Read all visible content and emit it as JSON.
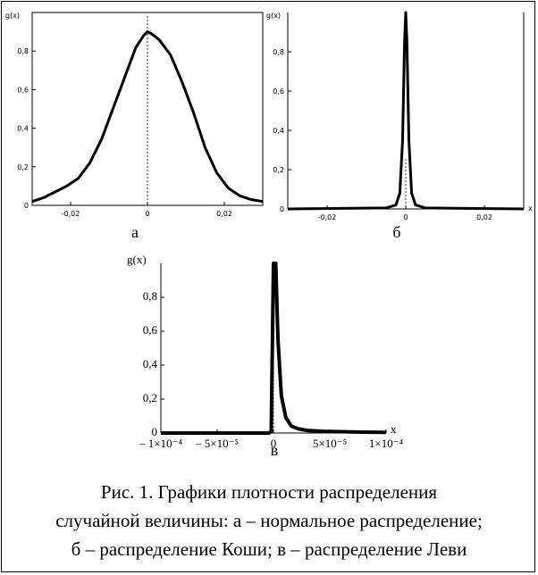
{
  "chart_data": [
    {
      "type": "line",
      "panel_label": "а",
      "ylabel": "g(x)",
      "xlabel": "",
      "xlim": [
        -0.03,
        0.03
      ],
      "ylim": [
        0,
        1
      ],
      "xticks": [
        -0.02,
        0,
        0.02
      ],
      "xtick_labels": [
        "-0,02",
        "0",
        "0,02"
      ],
      "yticks": [
        0.2,
        0.4,
        0.6,
        0.8
      ],
      "ytick_labels": [
        "0,2",
        "0,4",
        "0,6",
        "0,8"
      ],
      "series": [
        {
          "x": [
            -0.03,
            -0.027,
            -0.024,
            -0.021,
            -0.018,
            -0.015,
            -0.012,
            -0.009,
            -0.006,
            -0.003,
            -0.001,
            0,
            0.001,
            0.003,
            0.006,
            0.009,
            0.012,
            0.015,
            0.018,
            0.021,
            0.024,
            0.027,
            0.03
          ],
          "y": [
            0.02,
            0.04,
            0.07,
            0.1,
            0.14,
            0.22,
            0.34,
            0.5,
            0.66,
            0.82,
            0.88,
            0.9,
            0.89,
            0.86,
            0.78,
            0.64,
            0.48,
            0.3,
            0.17,
            0.09,
            0.05,
            0.03,
            0.02
          ]
        }
      ]
    },
    {
      "type": "line",
      "panel_label": "б",
      "ylabel": "g(x)",
      "xlabel": "x",
      "xlim": [
        -0.03,
        0.03
      ],
      "ylim": [
        0,
        1
      ],
      "xticks": [
        -0.02,
        0,
        0.02
      ],
      "xtick_labels": [
        "-0,02",
        "0",
        "0,02"
      ],
      "yticks": [
        0.2,
        0.4,
        0.6,
        0.8
      ],
      "ytick_labels": [
        "0,2",
        "0,4",
        "0,6",
        "0,8"
      ],
      "series": [
        {
          "x": [
            -0.03,
            -0.005,
            -0.0025,
            -0.0015,
            -0.0008,
            -0.0003,
            0,
            0.0003,
            0.0008,
            0.0015,
            0.0025,
            0.005,
            0.03
          ],
          "y": [
            0,
            0.005,
            0.02,
            0.08,
            0.35,
            0.85,
            1.0,
            0.85,
            0.35,
            0.08,
            0.02,
            0.005,
            0
          ]
        }
      ]
    },
    {
      "type": "line",
      "panel_label": "в",
      "ylabel": "g(x)",
      "xlabel": "x",
      "xlim": [
        -0.0001,
        0.0001
      ],
      "ylim": [
        0,
        1
      ],
      "xtick_labels": [
        "– 1×10⁻⁴",
        "– 5×10⁻⁵",
        "0",
        "5×10⁻⁵",
        "1×10⁻⁴"
      ],
      "xticks": [
        -0.0001,
        -5e-05,
        0,
        5e-05,
        0.0001
      ],
      "yticks": [
        0.2,
        0.4,
        0.6,
        0.8
      ],
      "ytick_labels": [
        "0,2",
        "0,4",
        "0,6",
        "0,8"
      ],
      "series": [
        {
          "x": [
            -0.0001,
            -4e-06,
            -2e-06,
            0,
            2e-06,
            4e-06,
            7e-06,
            1.1e-05,
            1.6e-05,
            2.2e-05,
            3e-05,
            4.5e-05,
            6e-05,
            8e-05,
            0.0001
          ],
          "y": [
            0,
            0,
            0.01,
            1.0,
            1.0,
            0.55,
            0.22,
            0.09,
            0.04,
            0.025,
            0.015,
            0.01,
            0.008,
            0.005,
            0.004
          ]
        }
      ]
    }
  ],
  "caption": {
    "line1": "Рис. 1. Графики плотности распределения",
    "line2": "случайной величины: а – нормальное распределение;",
    "line3": "б – распределение Коши; в – распределение Леви"
  }
}
